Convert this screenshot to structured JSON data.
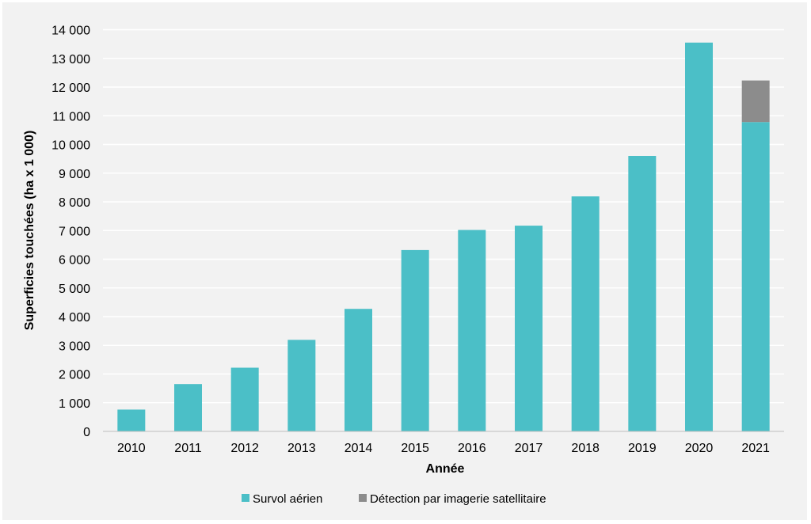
{
  "chart_data": {
    "type": "bar",
    "stacked": true,
    "title": "",
    "xlabel": "Année",
    "ylabel": "Superficies touchées (ha x 1 000)",
    "ylim": [
      0,
      14000
    ],
    "yticks": [
      0,
      1000,
      2000,
      3000,
      4000,
      5000,
      6000,
      7000,
      8000,
      9000,
      10000,
      11000,
      12000,
      13000,
      14000
    ],
    "ytick_labels": [
      "0",
      "1 000",
      "2 000",
      "3 000",
      "4 000",
      "5 000",
      "6 000",
      "7 000",
      "8 000",
      "9 000",
      "10 000",
      "11 000",
      "12 000",
      "13 000",
      "14 000"
    ],
    "grid": true,
    "legend_position": "bottom",
    "categories": [
      "2010",
      "2011",
      "2012",
      "2013",
      "2014",
      "2015",
      "2016",
      "2017",
      "2018",
      "2019",
      "2020",
      "2021"
    ],
    "series": [
      {
        "name": "Survol aérien",
        "color": "#4bbfc7",
        "values": [
          760,
          1650,
          2220,
          3190,
          4270,
          6320,
          7020,
          7170,
          8190,
          9600,
          13550,
          10780
        ]
      },
      {
        "name": "Détection par imagerie satellitaire",
        "color": "#8c8c8c",
        "values": [
          0,
          0,
          0,
          0,
          0,
          0,
          0,
          0,
          0,
          0,
          0,
          1450
        ]
      }
    ]
  }
}
